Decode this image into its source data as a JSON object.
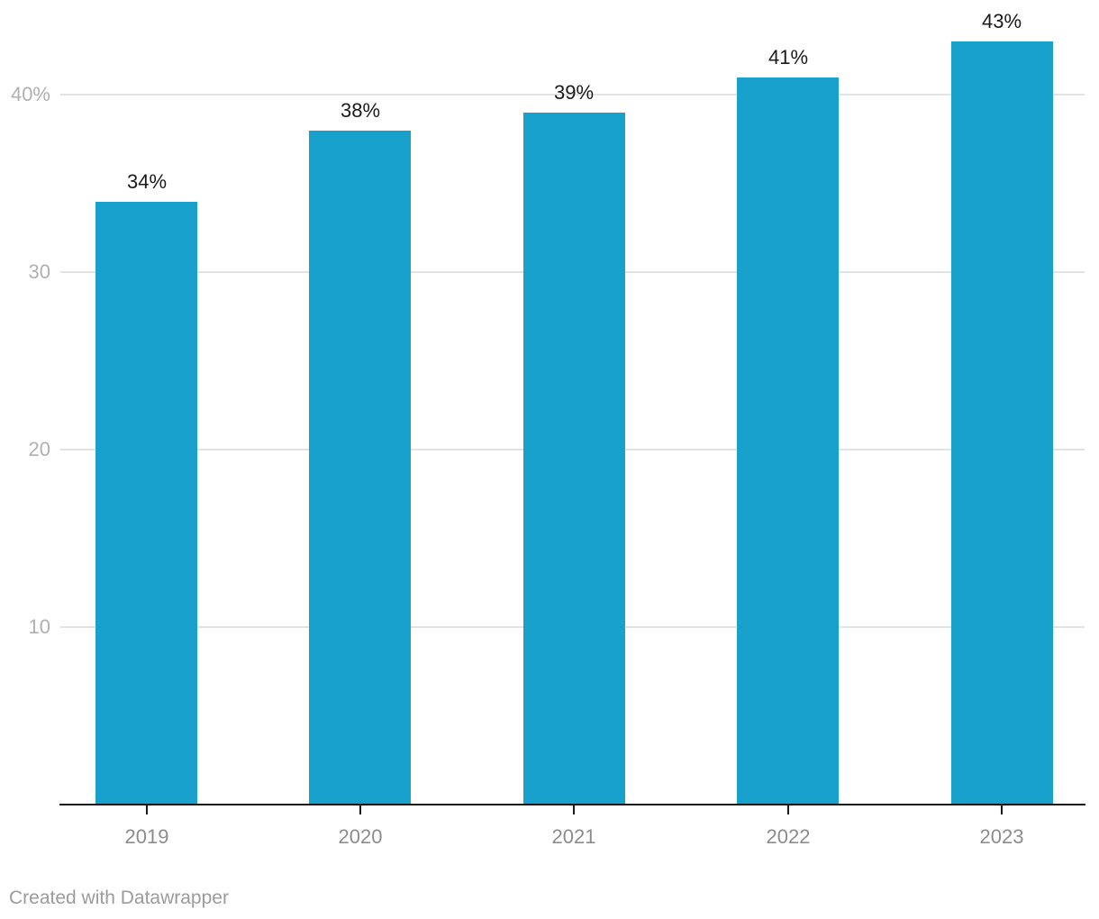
{
  "chart_data": {
    "type": "bar",
    "categories": [
      "2019",
      "2020",
      "2021",
      "2022",
      "2023"
    ],
    "values": [
      34,
      38,
      39,
      41,
      43
    ],
    "value_labels": [
      "34%",
      "38%",
      "39%",
      "41%",
      "43%"
    ],
    "y_axis": {
      "ticks": [
        {
          "value": 40,
          "label": "40%"
        },
        {
          "value": 30,
          "label": "30"
        },
        {
          "value": 20,
          "label": "20"
        },
        {
          "value": 10,
          "label": "10"
        }
      ],
      "range": [
        0,
        45.3
      ]
    },
    "grid": true,
    "legend": false
  },
  "style": {
    "bar_color": "#18a1cd",
    "grid_color": "#e2e2e2",
    "axis_color": "#1a1a1a",
    "value_label_color": "#1a1a1a",
    "x_label_color": "#8c8c8c",
    "y_label_color": "#b0b0b0",
    "credit_color": "#9b9b9b"
  },
  "footer": {
    "credit": "Created with Datawrapper"
  }
}
